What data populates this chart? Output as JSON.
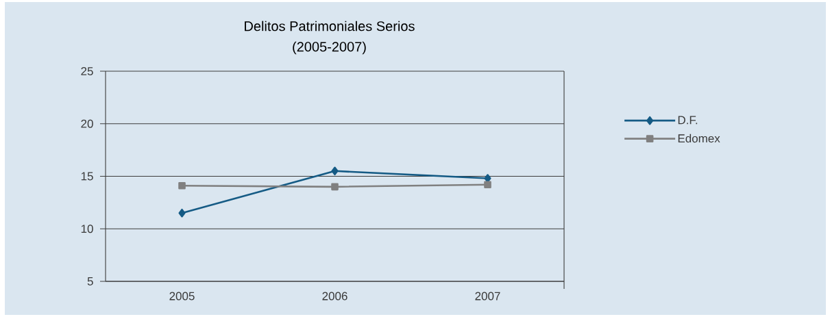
{
  "chart_data": {
    "type": "line",
    "title": "Delitos Patrimoniales Serios",
    "subtitle": "(2005-2007)",
    "categories": [
      "2005",
      "2006",
      "2007"
    ],
    "series": [
      {
        "name": "D.F.",
        "color": "#155b85",
        "values": [
          11.5,
          15.5,
          14.8
        ],
        "marker": "diamond"
      },
      {
        "name": "Edomex",
        "color": "#808080",
        "values": [
          14.1,
          14.0,
          14.2
        ],
        "marker": "square"
      }
    ],
    "ylim": [
      5,
      25
    ],
    "yticks": [
      5,
      10,
      15,
      20,
      25
    ],
    "grid": "y",
    "legend": "right",
    "line_style": "solid"
  }
}
